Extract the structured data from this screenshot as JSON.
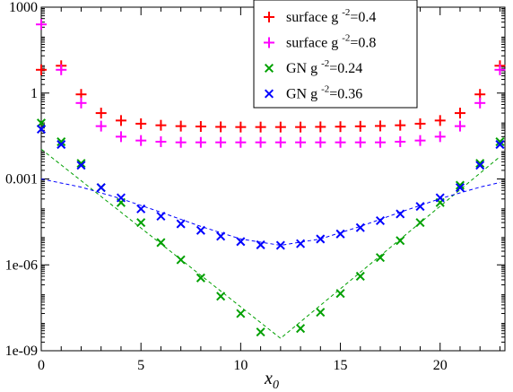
{
  "chart_data": {
    "type": "scatter",
    "title": "",
    "xlabel": "x",
    "xlabel_sub": "0",
    "ylabel": "",
    "xlim": [
      0,
      23.25
    ],
    "ylim": [
      1e-09,
      1000
    ],
    "yscale": "log",
    "xticks": [
      0,
      5,
      10,
      15,
      20
    ],
    "xtick_labels": [
      "0",
      "5",
      "10",
      "15",
      "20"
    ],
    "yticks": [
      1e-09,
      1e-06,
      0.001,
      1,
      1000
    ],
    "ytick_labels": [
      "1e-09",
      "1e-06",
      "0.001",
      "1",
      "1000"
    ],
    "grid": false,
    "legend_position": "top-center",
    "series": [
      {
        "legend_label": "surface g",
        "legend_exp": "-2",
        "legend_suffix": "=0.4",
        "marker": "plus",
        "color": "#ff0000",
        "x": [
          0,
          1,
          2,
          3,
          4,
          5,
          6,
          7,
          8,
          9,
          10,
          11,
          12,
          13,
          14,
          15,
          16,
          17,
          18,
          19,
          20,
          21,
          22,
          23
        ],
        "y": [
          6.5,
          9.0,
          0.9,
          0.2,
          0.11,
          0.085,
          0.075,
          0.07,
          0.068,
          0.066,
          0.065,
          0.065,
          0.065,
          0.065,
          0.066,
          0.067,
          0.069,
          0.071,
          0.075,
          0.085,
          0.11,
          0.2,
          0.9,
          9.0
        ]
      },
      {
        "legend_label": "surface g",
        "legend_exp": "-2",
        "legend_suffix": "=0.8",
        "marker": "plus",
        "color": "#ff00ff",
        "x": [
          0,
          1,
          2,
          3,
          4,
          5,
          6,
          7,
          8,
          9,
          10,
          11,
          12,
          13,
          14,
          15,
          16,
          17,
          18,
          19,
          20,
          21,
          22,
          23
        ],
        "y": [
          250,
          6.5,
          0.45,
          0.07,
          0.03,
          0.022,
          0.02,
          0.019,
          0.019,
          0.019,
          0.019,
          0.019,
          0.019,
          0.019,
          0.019,
          0.019,
          0.019,
          0.019,
          0.02,
          0.022,
          0.03,
          0.07,
          0.45,
          6.5
        ]
      },
      {
        "legend_label": "GN g",
        "legend_exp": "-2",
        "legend_suffix": "=0.24",
        "marker": "x",
        "color": "#00a000",
        "x": [
          0,
          1,
          2,
          3,
          4,
          5,
          6,
          7,
          8,
          9,
          10,
          11,
          12,
          13,
          14,
          15,
          16,
          17,
          18,
          19,
          20,
          21,
          22,
          23
        ],
        "y": [
          0.09,
          0.02,
          0.0035,
          0.0005,
          0.00015,
          3e-05,
          6e-06,
          1.5e-06,
          3.5e-07,
          8e-08,
          2e-08,
          4.5e-09,
          null,
          6e-09,
          2.2e-08,
          1e-07,
          4e-07,
          1.8e-06,
          7e-06,
          3e-05,
          0.00015,
          0.0006,
          0.0035,
          0.02
        ],
        "fit_x": [
          0,
          12,
          23
        ],
        "fit_y": [
          0.011,
          2.7e-09,
          0.006
        ]
      },
      {
        "legend_label": "GN g",
        "legend_exp": "-2",
        "legend_suffix": "=0.36",
        "marker": "x",
        "color": "#0000ff",
        "x": [
          0,
          1,
          2,
          3,
          4,
          5,
          6,
          7,
          8,
          9,
          10,
          11,
          12,
          13,
          14,
          15,
          16,
          17,
          18,
          19,
          20,
          21,
          22,
          23
        ],
        "y": [
          0.055,
          0.016,
          0.003,
          0.0005,
          0.00022,
          9e-05,
          5e-05,
          2.7e-05,
          1.6e-05,
          1e-05,
          6.5e-06,
          5e-06,
          4.8e-06,
          5.5e-06,
          8e-06,
          1.2e-05,
          2e-05,
          3.5e-05,
          6e-05,
          0.00011,
          0.00022,
          0.0005,
          0.003,
          0.016
        ],
        "fit_x": [
          0,
          2,
          4,
          6,
          8,
          10,
          12,
          14,
          16,
          18,
          20,
          22,
          23
        ],
        "fit_y": [
          0.001,
          0.00052,
          0.000205,
          6.9e-05,
          2.2e-05,
          8e-06,
          4.8e-06,
          8e-06,
          2.2e-05,
          6.9e-05,
          0.000205,
          0.00052,
          0.00075
        ]
      }
    ]
  }
}
